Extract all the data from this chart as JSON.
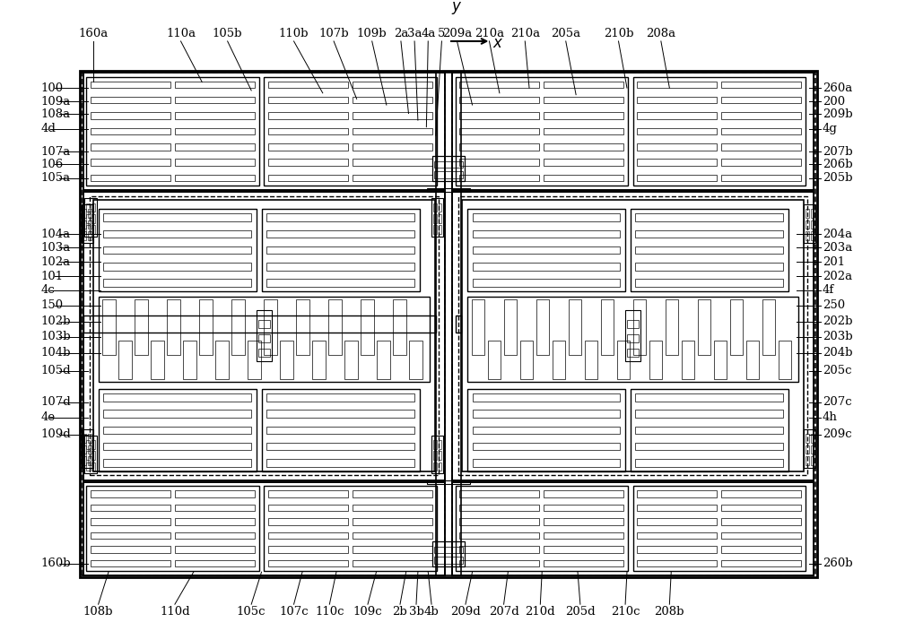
{
  "fig_width": 10.0,
  "fig_height": 7.04,
  "bg_color": "#ffffff",
  "font": "DejaVu Serif",
  "lw_outer": 1.8,
  "lw_mid": 1.2,
  "lw_inner": 0.8,
  "lw_finger": 0.5,
  "top_labels": [
    [
      "160a",
      82,
      695,
      82,
      645
    ],
    [
      "110a",
      185,
      695,
      210,
      645
    ],
    [
      "105b",
      240,
      695,
      268,
      635
    ],
    [
      "110b",
      318,
      695,
      352,
      632
    ],
    [
      "107b",
      365,
      695,
      392,
      625
    ],
    [
      "109b",
      410,
      695,
      427,
      618
    ],
    [
      "2a",
      444,
      695,
      453,
      608
    ],
    [
      "3a",
      460,
      695,
      464,
      600
    ],
    [
      "4a",
      476,
      695,
      474,
      592
    ],
    [
      "5",
      492,
      695,
      485,
      582
    ],
    [
      "209a",
      510,
      695,
      528,
      618
    ],
    [
      "210a",
      548,
      695,
      560,
      632
    ],
    [
      "210a",
      590,
      695,
      595,
      638
    ],
    [
      "205a",
      638,
      695,
      650,
      630
    ],
    [
      "210b",
      700,
      695,
      710,
      638
    ],
    [
      "208a",
      750,
      695,
      760,
      638
    ]
  ],
  "left_labels": [
    [
      "100",
      20,
      638,
      76,
      638
    ],
    [
      "109a",
      20,
      622,
      76,
      622
    ],
    [
      "108a",
      20,
      607,
      76,
      607
    ],
    [
      "4d",
      20,
      590,
      76,
      590
    ],
    [
      "107a",
      20,
      563,
      76,
      563
    ],
    [
      "106",
      20,
      548,
      76,
      548
    ],
    [
      "105a",
      20,
      532,
      76,
      532
    ],
    [
      "104a",
      20,
      466,
      90,
      466
    ],
    [
      "103a",
      20,
      450,
      90,
      450
    ],
    [
      "102a",
      20,
      433,
      90,
      433
    ],
    [
      "101",
      20,
      416,
      90,
      416
    ],
    [
      "4c",
      20,
      400,
      90,
      400
    ],
    [
      "150",
      20,
      382,
      90,
      382
    ],
    [
      "102b",
      20,
      363,
      90,
      363
    ],
    [
      "103b",
      20,
      345,
      90,
      345
    ],
    [
      "104b",
      20,
      326,
      90,
      326
    ],
    [
      "105d",
      20,
      305,
      76,
      305
    ],
    [
      "107d",
      20,
      268,
      76,
      268
    ],
    [
      "4e",
      20,
      250,
      76,
      250
    ],
    [
      "109d",
      20,
      230,
      76,
      230
    ],
    [
      "160b",
      20,
      78,
      76,
      78
    ]
  ],
  "right_labels": [
    [
      "260a",
      940,
      638,
      924,
      638
    ],
    [
      "200",
      940,
      622,
      924,
      622
    ],
    [
      "209b",
      940,
      607,
      924,
      607
    ],
    [
      "4g",
      940,
      590,
      924,
      590
    ],
    [
      "207b",
      940,
      563,
      924,
      563
    ],
    [
      "206b",
      940,
      548,
      924,
      548
    ],
    [
      "205b",
      940,
      532,
      924,
      532
    ],
    [
      "204a",
      940,
      466,
      910,
      466
    ],
    [
      "203a",
      940,
      450,
      910,
      450
    ],
    [
      "201",
      940,
      433,
      910,
      433
    ],
    [
      "202a",
      940,
      416,
      910,
      416
    ],
    [
      "4f",
      940,
      400,
      910,
      400
    ],
    [
      "250",
      940,
      382,
      910,
      382
    ],
    [
      "202b",
      940,
      363,
      910,
      363
    ],
    [
      "203b",
      940,
      345,
      910,
      345
    ],
    [
      "204b",
      940,
      326,
      910,
      326
    ],
    [
      "205c",
      940,
      305,
      924,
      305
    ],
    [
      "207c",
      940,
      268,
      924,
      268
    ],
    [
      "4h",
      940,
      250,
      924,
      250
    ],
    [
      "209c",
      940,
      230,
      924,
      230
    ],
    [
      "260b",
      940,
      78,
      924,
      78
    ]
  ],
  "bottom_labels": [
    [
      "108b",
      88,
      28,
      100,
      68
    ],
    [
      "110d",
      178,
      28,
      200,
      68
    ],
    [
      "105c",
      268,
      28,
      280,
      68
    ],
    [
      "107c",
      318,
      28,
      328,
      68
    ],
    [
      "110c",
      360,
      28,
      368,
      68
    ],
    [
      "109c",
      405,
      28,
      415,
      68
    ],
    [
      "2b",
      443,
      28,
      450,
      68
    ],
    [
      "3b",
      462,
      28,
      464,
      68
    ],
    [
      "4b",
      480,
      28,
      476,
      68
    ],
    [
      "209d",
      520,
      28,
      528,
      68
    ],
    [
      "207d",
      565,
      28,
      570,
      68
    ],
    [
      "210d",
      608,
      28,
      610,
      68
    ],
    [
      "205d",
      655,
      28,
      652,
      68
    ],
    [
      "210c",
      708,
      28,
      710,
      68
    ],
    [
      "208b",
      760,
      28,
      762,
      68
    ]
  ]
}
